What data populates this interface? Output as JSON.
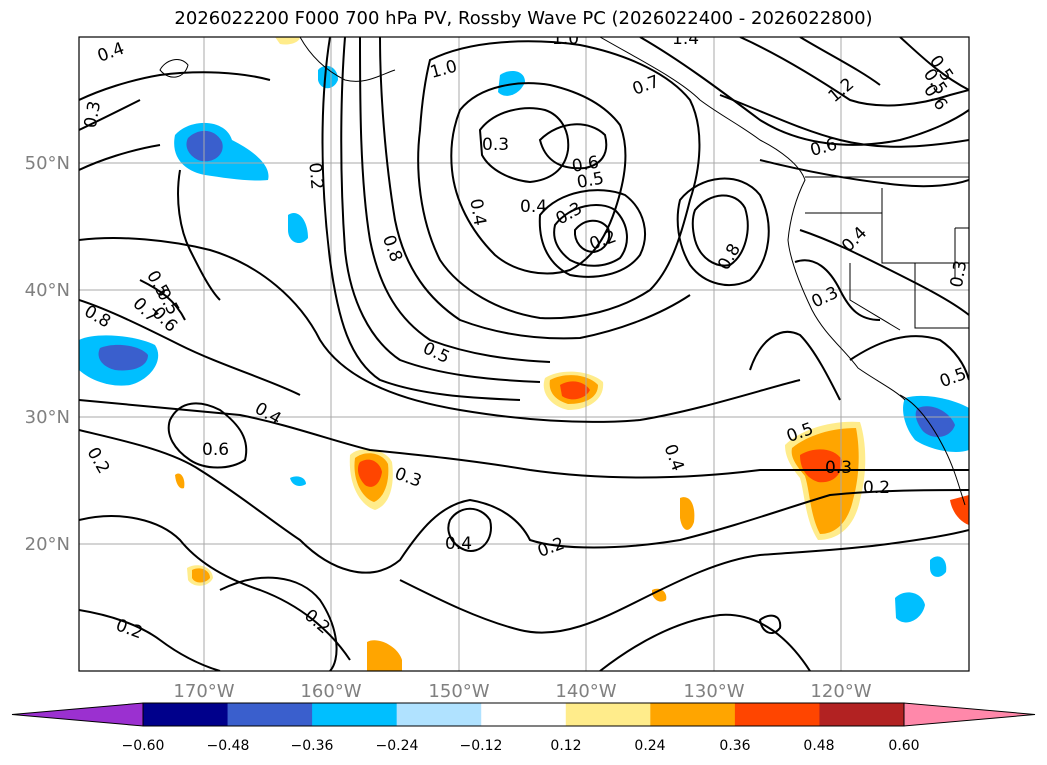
{
  "title": "2026022200 F000 700 hPa PV, Rossby Wave PC (2026022400 - 2026022800)",
  "lat_labels": [
    "50°N",
    "40°N",
    "30°N",
    "20°N"
  ],
  "lon_labels": [
    "170°W",
    "160°W",
    "150°W",
    "140°W",
    "130°W",
    "120°W"
  ],
  "colorbar": {
    "tick_labels": [
      "−0.60",
      "−0.48",
      "−0.36",
      "−0.24",
      "−0.12",
      "0.12",
      "0.24",
      "0.36",
      "0.48",
      "0.60"
    ],
    "colors": [
      "#9b30d0",
      "#00008b",
      "#3a5fcd",
      "#00bfff",
      "#b0e2ff",
      "#ffffff",
      "#ffec8b",
      "#ffa500",
      "#ff4500",
      "#b22222",
      "#ff88aa"
    ]
  },
  "contour_labels": [
    "0.4",
    "0.3",
    "0.2",
    "1.0",
    "1.0",
    "1.4",
    "0.7",
    "0.3",
    "0.6",
    "0.5",
    "0.4",
    "0.4",
    "0.3",
    "0.2",
    "0.8",
    "0.8",
    "1.2",
    "0.5",
    "0.6",
    "0.6",
    "0.4",
    "0.3",
    "0.3",
    "0.5",
    "0.5",
    "0.8",
    "0.7",
    "0.6",
    "0.5",
    "0.4",
    "0.6",
    "0.5",
    "0.3",
    "0.2",
    "0.4",
    "0.4",
    "0.2",
    "0.2",
    "0.2",
    "0.5",
    "0.3",
    "0.2",
    "0.5"
  ],
  "contour_label_color": "#000000",
  "grid_color": "#a9a9a9",
  "tick_label_color": "#808080"
}
